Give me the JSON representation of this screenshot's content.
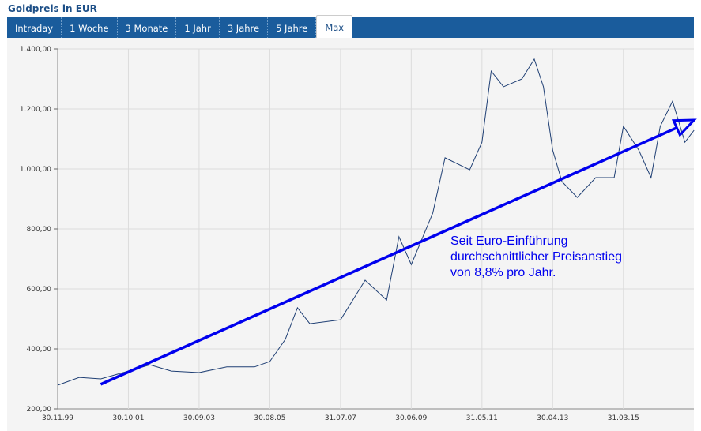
{
  "title": "Goldpreis in EUR",
  "tabs": [
    {
      "label": "Intraday"
    },
    {
      "label": "1 Woche"
    },
    {
      "label": "3 Monate"
    },
    {
      "label": "1 Jahr"
    },
    {
      "label": "3 Jahre"
    },
    {
      "label": "5 Jahre"
    },
    {
      "label": "Max",
      "active": true
    }
  ],
  "chart_data": {
    "type": "line",
    "title": "",
    "ylim": [
      200,
      1400
    ],
    "y_ticks": [
      "200,00",
      "400,00",
      "600,00",
      "800,00",
      "1.000,00",
      "1.200,00",
      "1.400,00"
    ],
    "x_ticks": [
      "30.11.99",
      "30.10.01",
      "30.09.03",
      "30.08.05",
      "31.07.07",
      "30.06.09",
      "31.05.11",
      "30.04.13",
      "31.03.15"
    ],
    "grid": true,
    "line_color": "#1f3f74",
    "series": [
      {
        "points": [
          [
            "1999-11",
            279
          ],
          [
            "2000-06",
            305
          ],
          [
            "2001-01",
            300
          ],
          [
            "2001-10",
            326
          ],
          [
            "2002-05",
            347
          ],
          [
            "2002-12",
            326
          ],
          [
            "2003-09",
            321
          ],
          [
            "2004-06",
            340
          ],
          [
            "2005-03",
            340
          ],
          [
            "2005-08",
            358
          ],
          [
            "2006-01",
            431
          ],
          [
            "2006-05",
            537
          ],
          [
            "2006-09",
            484
          ],
          [
            "2007-07",
            497
          ],
          [
            "2008-03",
            629
          ],
          [
            "2008-10",
            563
          ],
          [
            "2009-02",
            774
          ],
          [
            "2009-06",
            681
          ],
          [
            "2010-01",
            853
          ],
          [
            "2010-05",
            1037
          ],
          [
            "2011-01",
            997
          ],
          [
            "2011-05",
            1089
          ],
          [
            "2011-08",
            1326
          ],
          [
            "2011-12",
            1274
          ],
          [
            "2012-06",
            1300
          ],
          [
            "2012-10",
            1366
          ],
          [
            "2013-01",
            1274
          ],
          [
            "2013-04",
            1063
          ],
          [
            "2013-07",
            958
          ],
          [
            "2013-12",
            905
          ],
          [
            "2014-06",
            971
          ],
          [
            "2014-12",
            971
          ],
          [
            "2015-03",
            1142
          ],
          [
            "2015-08",
            1063
          ],
          [
            "2015-12",
            971
          ],
          [
            "2016-03",
            1142
          ],
          [
            "2016-07",
            1226
          ],
          [
            "2016-11",
            1089
          ],
          [
            "2017-02",
            1129
          ]
        ]
      }
    ],
    "annotation": {
      "text": "Seit Euro-Einführung\ndurchschnittlicher Preisanstieg\nvon 8,8% pro Jahr.",
      "color": "#0000ee",
      "arrow": {
        "from": [
          "2001-01",
          282
        ],
        "to": [
          "2017-02",
          1163
        ]
      }
    }
  }
}
